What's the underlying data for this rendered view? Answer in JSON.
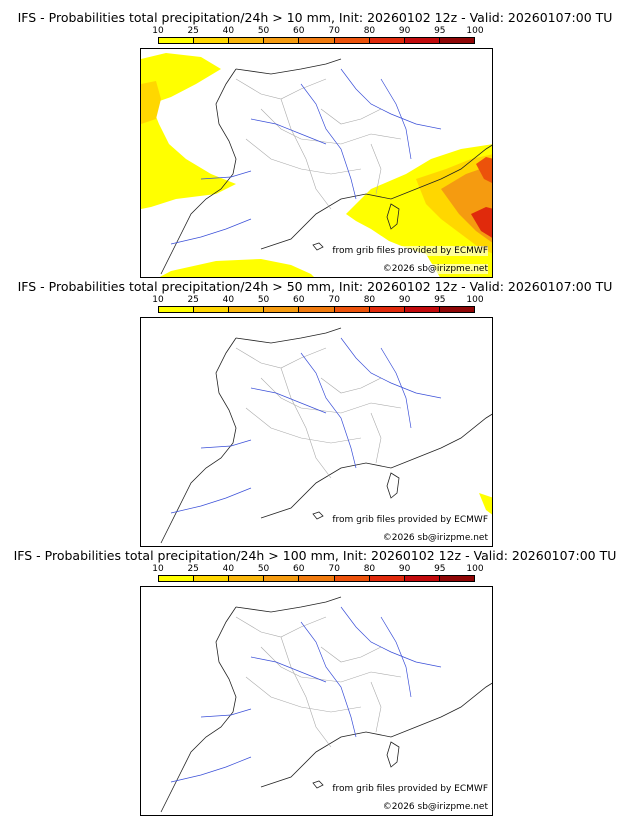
{
  "colorbar": {
    "ticks": [
      "10",
      "25",
      "40",
      "50",
      "60",
      "70",
      "80",
      "90",
      "95",
      "100"
    ],
    "colors": [
      "#ffff00",
      "#ffd700",
      "#f9b60c",
      "#f59b10",
      "#f07a0e",
      "#ec520b",
      "#e02a0c",
      "#c20a0c",
      "#8f0606",
      "#5a0202"
    ]
  },
  "panels": [
    {
      "title": "IFS - Probabilities total precipitation/24h > 10 mm, Init: 20260102 12z - Valid: 20260107:00 TU",
      "credit_source": "from grib files provided by ECMWF",
      "credit_copyright": "©2026 sb@irizpme.net"
    },
    {
      "title": "IFS - Probabilities total precipitation/24h > 50 mm, Init: 20260102 12z - Valid: 20260107:00 TU",
      "credit_source": "from grib files provided by ECMWF",
      "credit_copyright": "©2026 sb@irizpme.net"
    },
    {
      "title": "IFS - Probabilities total precipitation/24h > 100 mm, Init: 20260102 12z - Valid: 20260107:00 TU",
      "credit_source": "from grib files provided by ECMWF",
      "credit_copyright": "©2026 sb@irizpme.net"
    }
  ]
}
